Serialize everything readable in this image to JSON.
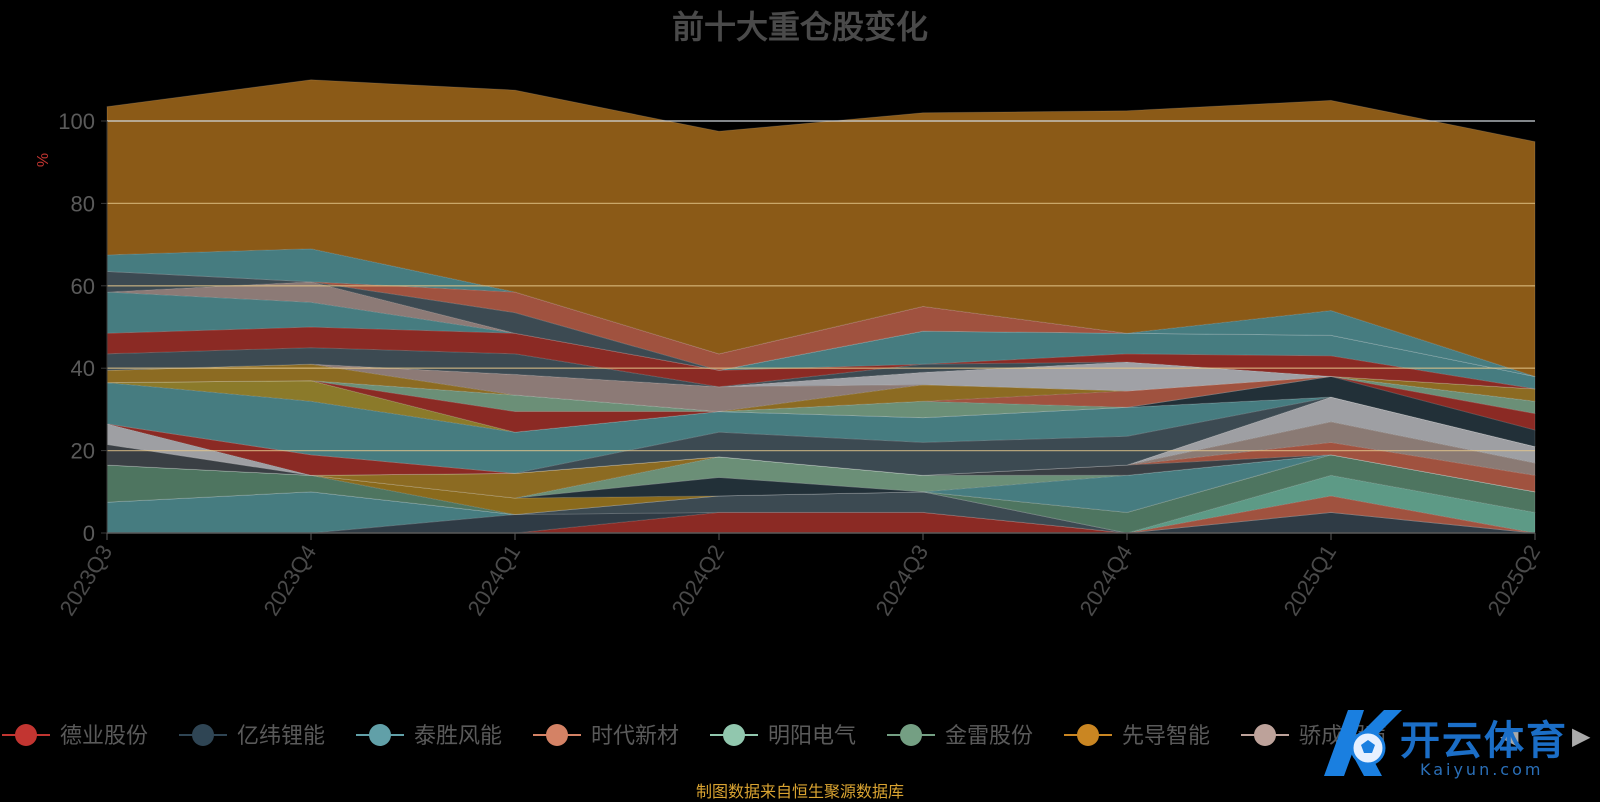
{
  "chart_data": {
    "type": "area",
    "stacked": true,
    "title": "前十大重仓股变化",
    "ylabel": "%",
    "ylim": [
      0,
      100
    ],
    "yticks": [
      0,
      20,
      40,
      60,
      80,
      100
    ],
    "categories": [
      "2023Q3",
      "2023Q4",
      "2024Q1",
      "2024Q2",
      "2024Q3",
      "2024Q4",
      "2025Q1",
      "2025Q2"
    ],
    "series": [
      {
        "name": "",
        "color": "#8b2a24",
        "values": [
          0,
          0,
          0,
          5,
          5,
          0,
          0,
          0
        ]
      },
      {
        "name": "",
        "color": "#2f3b45",
        "values": [
          0,
          0,
          4.5,
          0,
          0,
          0,
          5,
          0
        ]
      },
      {
        "name": "",
        "color": "#467c80",
        "values": [
          7.5,
          10,
          0,
          0,
          0,
          0,
          0,
          0
        ]
      },
      {
        "name": "",
        "color": "#3c4a52",
        "values": [
          0,
          0,
          0,
          4,
          5,
          0,
          0,
          0
        ]
      },
      {
        "name": "",
        "color": "#a0523f",
        "values": [
          0,
          0,
          0,
          0,
          0,
          0,
          4,
          0
        ]
      },
      {
        "name": "",
        "color": "#5d9a86",
        "values": [
          0,
          0,
          0,
          0,
          0,
          0,
          5,
          5
        ]
      },
      {
        "name": "",
        "color": "#4e7560",
        "values": [
          9,
          4,
          0,
          0,
          0,
          5,
          5,
          5
        ]
      },
      {
        "name": "",
        "color": "#8a6a1c",
        "values": [
          0,
          0,
          4,
          0,
          0,
          0,
          0,
          0
        ]
      },
      {
        "name": "",
        "color": "#223038",
        "values": [
          0,
          0,
          0,
          4.5,
          0,
          0,
          0,
          0
        ]
      },
      {
        "name": "",
        "color": "#467c80",
        "values": [
          0,
          0,
          0,
          0,
          0,
          9,
          0,
          0
        ]
      },
      {
        "name": "",
        "color": "#6b8f77",
        "values": [
          0,
          0,
          0,
          5,
          4,
          0,
          0,
          0
        ]
      },
      {
        "name": "",
        "color": "#8c6b22",
        "values": [
          0,
          0,
          6,
          0,
          0,
          0,
          0,
          0
        ]
      },
      {
        "name": "",
        "color": "#3a3f44",
        "values": [
          5,
          0,
          0,
          0,
          0,
          2.5,
          0,
          0
        ]
      },
      {
        "name": "",
        "color": "#a0523f",
        "values": [
          0,
          0,
          0,
          0,
          0,
          0,
          3,
          4
        ]
      },
      {
        "name": "",
        "color": "#8a7a74",
        "values": [
          0,
          0,
          0,
          0,
          0,
          0,
          5,
          3
        ]
      },
      {
        "name": "",
        "color": "#9e9fa3",
        "values": [
          5,
          0,
          0,
          0,
          0,
          0,
          6,
          4
        ]
      },
      {
        "name": "",
        "color": "#8b2a24",
        "values": [
          0,
          5,
          0,
          0,
          0,
          0,
          0,
          0
        ]
      },
      {
        "name": "",
        "color": "#3c4a52",
        "values": [
          0,
          0,
          0,
          6,
          8,
          7,
          0,
          0
        ]
      },
      {
        "name": "",
        "color": "#467c80",
        "values": [
          10,
          13,
          10,
          5,
          6,
          7,
          0,
          0
        ]
      },
      {
        "name": "",
        "color": "#8b7a2a",
        "values": [
          0,
          5,
          0,
          0,
          0,
          0,
          0,
          0
        ]
      },
      {
        "name": "",
        "color": "#223038",
        "values": [
          0,
          0,
          0,
          0,
          0,
          0,
          5,
          4
        ]
      },
      {
        "name": "",
        "color": "#8b2a24",
        "values": [
          0,
          0,
          5,
          0,
          0,
          0,
          0,
          4
        ]
      },
      {
        "name": "",
        "color": "#6b8f77",
        "values": [
          0,
          0,
          4,
          0,
          4,
          0,
          0,
          3
        ]
      },
      {
        "name": "",
        "color": "#a0523f",
        "values": [
          0,
          0,
          0,
          0,
          0,
          4,
          0,
          0
        ]
      },
      {
        "name": "",
        "color": "#8c6b22",
        "values": [
          3,
          4,
          0,
          0,
          4,
          0,
          0,
          3
        ]
      },
      {
        "name": "",
        "color": "#8c7a76",
        "values": [
          0,
          0,
          5,
          6,
          0,
          0,
          0,
          0
        ]
      },
      {
        "name": "",
        "color": "#a0a1a6",
        "values": [
          0,
          0,
          0,
          0,
          3,
          7,
          0,
          0
        ]
      },
      {
        "name": "",
        "color": "#3c4a52",
        "values": [
          4,
          4,
          5,
          0,
          2,
          0,
          0,
          0
        ]
      },
      {
        "name": "",
        "color": "#8b2a24",
        "values": [
          5,
          5,
          5,
          4,
          0,
          2,
          5,
          0
        ]
      },
      {
        "name": "",
        "color": "#467c80",
        "values": [
          10,
          6,
          0,
          0,
          8,
          5,
          5,
          3
        ]
      },
      {
        "name": "",
        "color": "#8c7a76",
        "values": [
          0,
          5,
          0,
          0,
          0,
          0,
          0,
          0
        ]
      },
      {
        "name": "",
        "color": "#3c4a52",
        "values": [
          5,
          0,
          5,
          0,
          0,
          0,
          0,
          0
        ]
      },
      {
        "name": "",
        "color": "#a0523f",
        "values": [
          0,
          0,
          5,
          4,
          6,
          0,
          0,
          0
        ]
      },
      {
        "name": "",
        "color": "#467c80",
        "values": [
          4,
          8,
          0,
          0,
          0,
          0,
          6,
          0
        ]
      },
      {
        "name": "",
        "color": "#8b5a17",
        "values": [
          36,
          41,
          49,
          54,
          47,
          54,
          51,
          57
        ]
      }
    ]
  },
  "legend": {
    "items": [
      {
        "name": "德业股份",
        "color": "#c23531"
      },
      {
        "name": "亿纬锂能",
        "color": "#2f4554"
      },
      {
        "name": "泰胜风能",
        "color": "#61a0a8"
      },
      {
        "name": "时代新材",
        "color": "#d48265"
      },
      {
        "name": "明阳电气",
        "color": "#91c7ae"
      },
      {
        "name": "金雷股份",
        "color": "#749f83"
      },
      {
        "name": "先导智能",
        "color": "#ca8622"
      },
      {
        "name": "骄成超声",
        "color": "#bda29a"
      }
    ],
    "nav_prev": "◀",
    "nav_next": "▶"
  },
  "source_note": "制图数据来自恒生聚源数据库",
  "watermark": {
    "text": "开云体育",
    "sub": "Kaiyun.com",
    "color": "#1b6ec7"
  }
}
